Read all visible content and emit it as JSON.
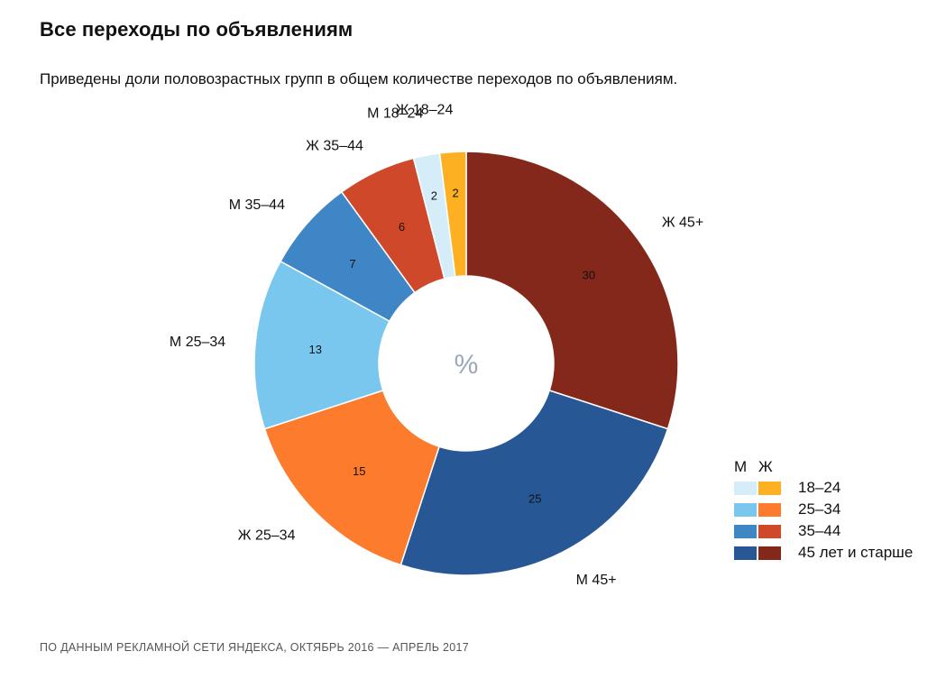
{
  "title": "Все переходы по объявлениям",
  "subtitle": "Приведены доли половозрастных групп в общем количестве переходов по объявлениям.",
  "footer": "ПО ДАННЫМ РЕКЛАМНОЙ СЕТИ ЯНДЕКСА, ОКТЯБРЬ 2016 — АПРЕЛЬ 2017",
  "chart_data": {
    "type": "pie",
    "donut": true,
    "center_label": "%",
    "slices": [
      {
        "label": "Ж 45+",
        "value": 30,
        "color": "#84281b"
      },
      {
        "label": "М 45+",
        "value": 25,
        "color": "#275895"
      },
      {
        "label": "Ж 25–34",
        "value": 15,
        "color": "#fd7b2d"
      },
      {
        "label": "М 25–34",
        "value": 13,
        "color": "#79c7ef"
      },
      {
        "label": "М 35–44",
        "value": 7,
        "color": "#3f86c6"
      },
      {
        "label": "Ж 35–44",
        "value": 6,
        "color": "#d0482a"
      },
      {
        "label": "М 18–24",
        "value": 2,
        "color": "#d5edf8"
      },
      {
        "label": "Ж 18–24",
        "value": 2,
        "color": "#fdb021"
      }
    ],
    "legend": {
      "position": "bottom-right",
      "header": [
        "М",
        "Ж"
      ],
      "rows": [
        {
          "label": "18–24",
          "colors": [
            "#d5edf8",
            "#fdb021"
          ]
        },
        {
          "label": "25–34",
          "colors": [
            "#79c7ef",
            "#fd7b2d"
          ]
        },
        {
          "label": "35–44",
          "colors": [
            "#3f86c6",
            "#d0482a"
          ]
        },
        {
          "label": "45 лет и старше",
          "colors": [
            "#275895",
            "#84281b"
          ]
        }
      ]
    }
  }
}
